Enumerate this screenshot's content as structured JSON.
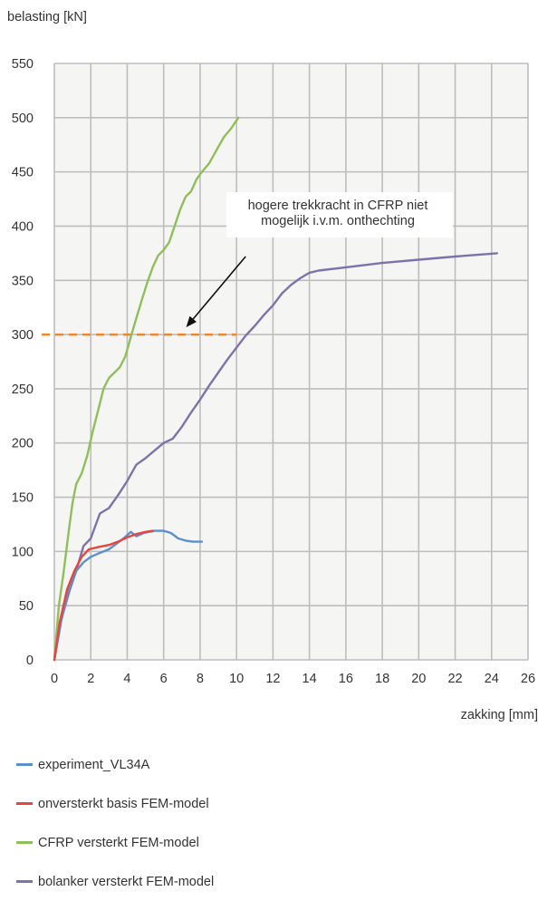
{
  "chart_data": {
    "type": "line",
    "ylabel": "belasting [kN]",
    "xlabel": "zakking [mm]",
    "xlim": [
      0,
      26
    ],
    "ylim": [
      0,
      550
    ],
    "xticks": [
      "0",
      "2",
      "4",
      "6",
      "8",
      "10",
      "12",
      "14",
      "16",
      "18",
      "20",
      "22",
      "24",
      "26"
    ],
    "yticks": [
      "0",
      "50",
      "100",
      "150",
      "200",
      "250",
      "300",
      "350",
      "400",
      "450",
      "500",
      "550"
    ],
    "grid": "vertical and horizontal",
    "series": [
      {
        "name": "experiment_VL34A",
        "color": "#5b8fd0",
        "points": [
          [
            0,
            0
          ],
          [
            0.3,
            30
          ],
          [
            0.7,
            60
          ],
          [
            1.2,
            82
          ],
          [
            1.6,
            90
          ],
          [
            2.0,
            95
          ],
          [
            2.4,
            98
          ],
          [
            3.0,
            102
          ],
          [
            3.4,
            107
          ],
          [
            3.8,
            112
          ],
          [
            4.2,
            118
          ],
          [
            4.5,
            114
          ],
          [
            4.9,
            117
          ],
          [
            5.5,
            119
          ],
          [
            6.0,
            119
          ],
          [
            6.4,
            117
          ],
          [
            6.8,
            112
          ],
          [
            7.2,
            110
          ],
          [
            7.6,
            109
          ],
          [
            8.1,
            109
          ]
        ]
      },
      {
        "name": "onversterkt basis FEM-model",
        "color": "#e8453c",
        "points": [
          [
            0,
            0
          ],
          [
            0.3,
            35
          ],
          [
            0.7,
            65
          ],
          [
            1.1,
            82
          ],
          [
            1.5,
            95
          ],
          [
            1.9,
            102
          ],
          [
            2.4,
            104
          ],
          [
            3.0,
            106
          ],
          [
            3.5,
            109
          ],
          [
            4.0,
            113
          ],
          [
            4.5,
            116
          ],
          [
            5.0,
            118
          ],
          [
            5.4,
            119
          ]
        ]
      },
      {
        "name": "CFRP versterkt FEM-model",
        "color": "#8fbf5a",
        "points": [
          [
            0,
            0
          ],
          [
            0.25,
            50
          ],
          [
            0.5,
            80
          ],
          [
            0.8,
            120
          ],
          [
            1.0,
            145
          ],
          [
            1.2,
            162
          ],
          [
            1.5,
            172
          ],
          [
            1.8,
            188
          ],
          [
            2.1,
            210
          ],
          [
            2.4,
            230
          ],
          [
            2.7,
            250
          ],
          [
            3.0,
            260
          ],
          [
            3.3,
            265
          ],
          [
            3.6,
            270
          ],
          [
            3.9,
            280
          ],
          [
            4.2,
            298
          ],
          [
            4.5,
            315
          ],
          [
            4.8,
            332
          ],
          [
            5.1,
            348
          ],
          [
            5.4,
            362
          ],
          [
            5.7,
            373
          ],
          [
            6.0,
            378
          ],
          [
            6.3,
            385
          ],
          [
            6.6,
            400
          ],
          [
            6.9,
            415
          ],
          [
            7.2,
            427
          ],
          [
            7.5,
            432
          ],
          [
            7.8,
            443
          ],
          [
            8.1,
            450
          ],
          [
            8.5,
            458
          ],
          [
            8.9,
            470
          ],
          [
            9.3,
            482
          ],
          [
            9.7,
            490
          ],
          [
            10.1,
            500
          ]
        ]
      },
      {
        "name": "bolanker versterkt FEM-model",
        "color": "#7f72ac",
        "points": [
          [
            0,
            0
          ],
          [
            0.4,
            38
          ],
          [
            0.8,
            62
          ],
          [
            1.2,
            82
          ],
          [
            1.6,
            105
          ],
          [
            2.0,
            112
          ],
          [
            2.5,
            135
          ],
          [
            3.0,
            140
          ],
          [
            3.5,
            152
          ],
          [
            4.0,
            165
          ],
          [
            4.5,
            180
          ],
          [
            5.0,
            186
          ],
          [
            5.5,
            193
          ],
          [
            6.0,
            200
          ],
          [
            6.5,
            204
          ],
          [
            7.0,
            215
          ],
          [
            7.5,
            228
          ],
          [
            8.0,
            240
          ],
          [
            8.5,
            253
          ],
          [
            9.0,
            265
          ],
          [
            9.5,
            277
          ],
          [
            10.0,
            288
          ],
          [
            10.5,
            299
          ],
          [
            11.0,
            308
          ],
          [
            11.5,
            318
          ],
          [
            12.0,
            327
          ],
          [
            12.5,
            338
          ],
          [
            13.0,
            346
          ],
          [
            13.5,
            352
          ],
          [
            14.0,
            357
          ],
          [
            14.5,
            359
          ],
          [
            16.0,
            362
          ],
          [
            18.0,
            366
          ],
          [
            20.0,
            369
          ],
          [
            22.0,
            372
          ],
          [
            24.3,
            375
          ]
        ]
      }
    ],
    "reference_line": {
      "y": 300,
      "x_range": [
        0,
        10
      ],
      "color": "#f0862a",
      "style": "dashed"
    },
    "annotation": {
      "lines": [
        "hogere trekkracht in CFRP niet",
        "mogelijk i.v.m. onthechting"
      ],
      "arrow_from": [
        10.5,
        372
      ],
      "arrow_to": [
        7.3,
        308
      ]
    }
  }
}
